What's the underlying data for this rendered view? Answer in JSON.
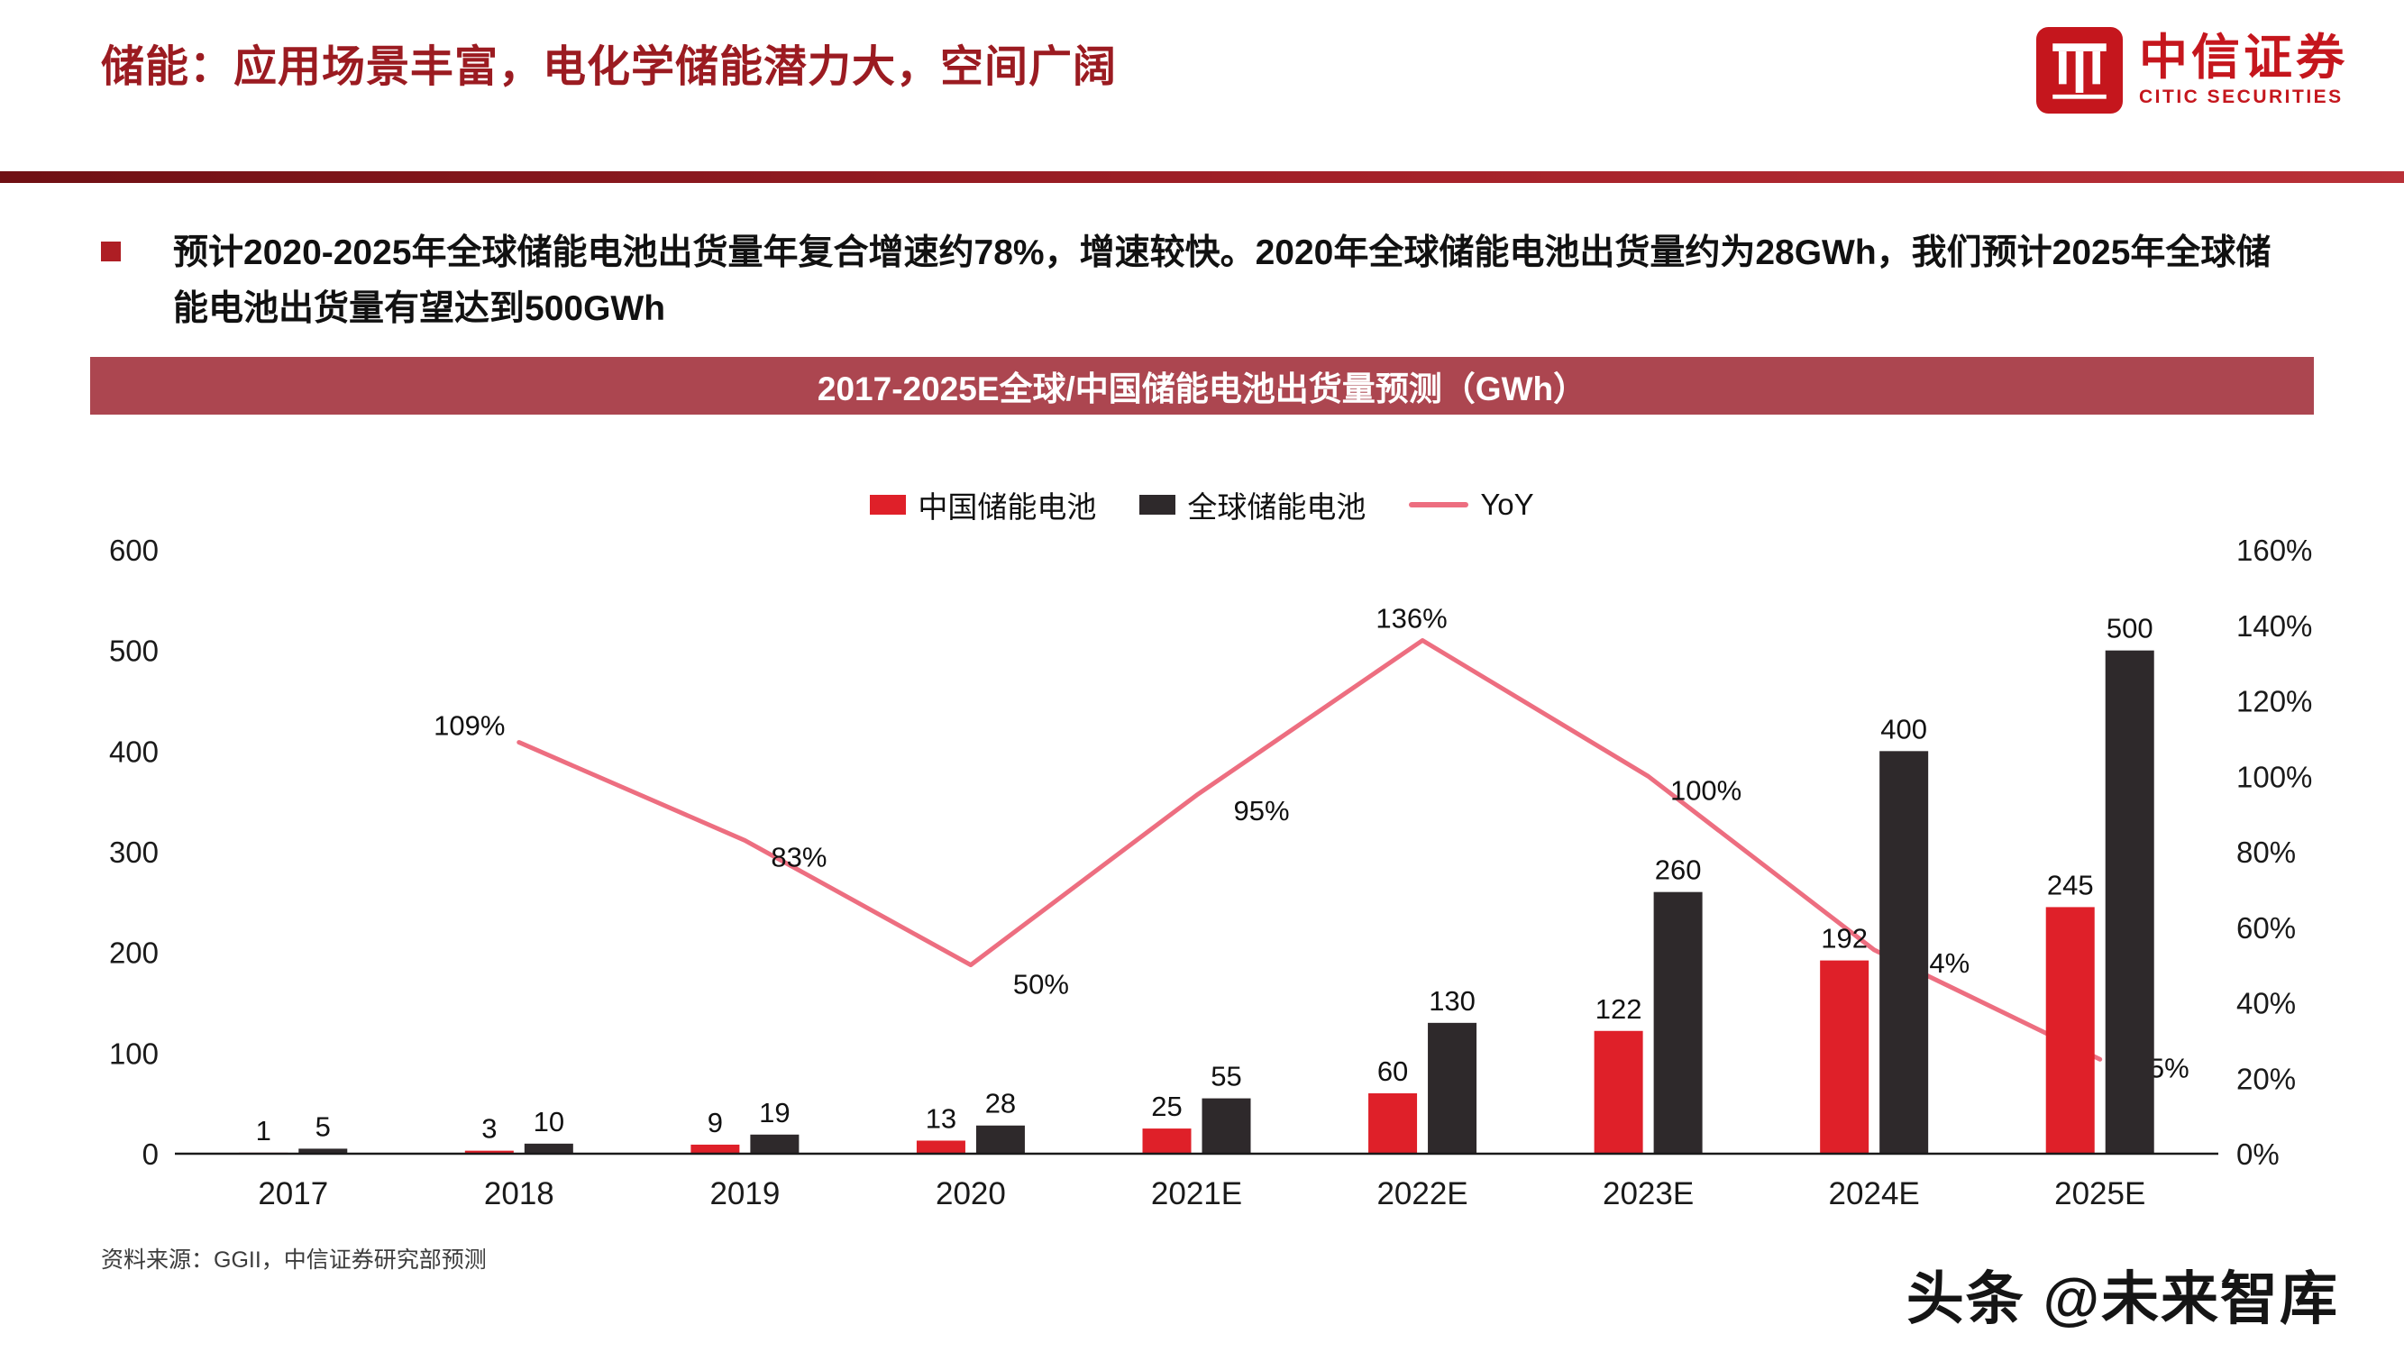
{
  "header": {
    "title": "储能：应用场景丰富，电化学储能潜力大，空间广阔",
    "logo_cn": "中信证券",
    "logo_en": "CITIC SECURITIES"
  },
  "summary": {
    "text": "预计2020-2025年全球储能电池出货量年复合增速约78%，增速较快。2020年全球储能电池出货量约为28GWh，我们预计2025年全球储能电池出货量有望达到500GWh"
  },
  "chart_data": {
    "type": "bar",
    "title": "2017-2025E全球/中国储能电池出货量预测（GWh）",
    "categories": [
      "2017",
      "2018",
      "2019",
      "2020",
      "2021E",
      "2022E",
      "2023E",
      "2024E",
      "2025E"
    ],
    "series": [
      {
        "name": "中国储能电池",
        "type": "bar",
        "axis": "left",
        "color": "#df2029",
        "values": [
          1,
          3,
          9,
          13,
          25,
          60,
          122,
          192,
          245
        ]
      },
      {
        "name": "全球储能电池",
        "type": "bar",
        "axis": "left",
        "color": "#2e292b",
        "values": [
          5,
          10,
          19,
          28,
          55,
          130,
          260,
          400,
          500
        ]
      },
      {
        "name": "YoY",
        "type": "line",
        "axis": "right",
        "color": "#ed6e80",
        "label_suffix": "%",
        "values": [
          null,
          109,
          83,
          50,
          95,
          136,
          100,
          54,
          25
        ]
      }
    ],
    "left_axis": {
      "min": 0,
      "max": 600,
      "step": 100
    },
    "right_axis": {
      "min": 0,
      "max": 160,
      "step": 20,
      "suffix": "%"
    },
    "grid": false,
    "legend_position": "top"
  },
  "source": {
    "text": "资料来源：GGII，中信证券研究部预测"
  },
  "watermark": {
    "text": "头条 @未来智库"
  }
}
